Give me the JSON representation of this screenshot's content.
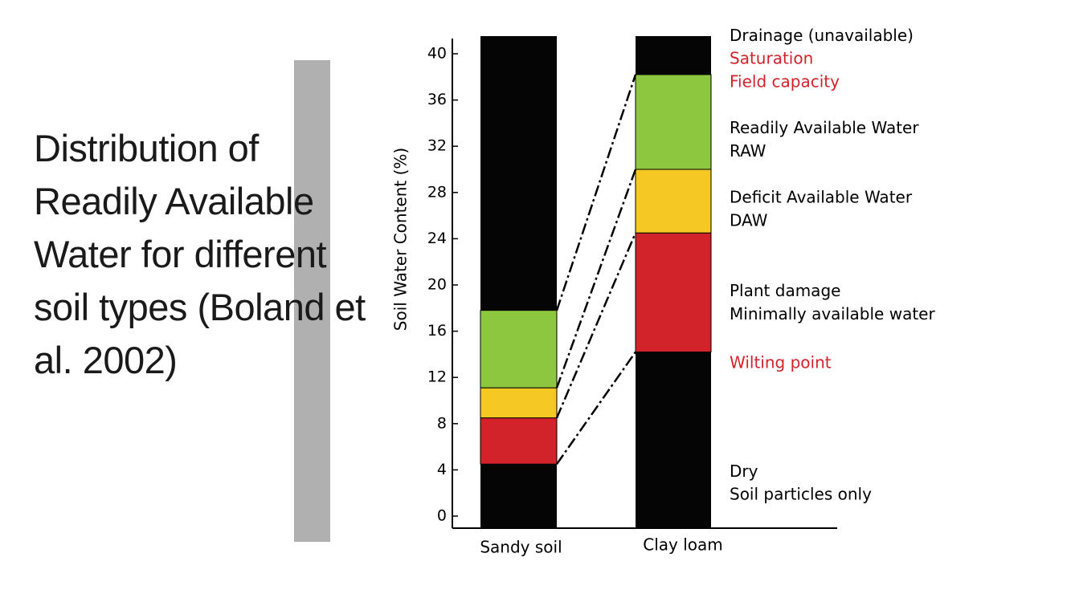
{
  "slide": {
    "title_part1": "Distribution of Readily Available Water for different soil types",
    "title_part2": " (Boland et al. 2002)"
  },
  "colors": {
    "black": "#050505",
    "green": "#8dc63f",
    "yellow": "#f5c823",
    "red": "#d2232a",
    "legend_red": "#d2232a",
    "legend_black": "#000000"
  },
  "chart_data": {
    "type": "bar",
    "stacked": true,
    "ylabel": "Soil Water Content (%)",
    "ylim": [
      0,
      42
    ],
    "yticks": [
      0,
      4,
      8,
      12,
      16,
      20,
      24,
      28,
      32,
      36,
      40
    ],
    "grid": false,
    "categories": [
      "Sandy soil",
      "Clay loam"
    ],
    "bars": [
      {
        "category": "Sandy soil",
        "segments": [
          {
            "from": 0,
            "to": 4.5,
            "color": "black",
            "zone": "Dry / Soil particles only"
          },
          {
            "from": 4.5,
            "to": 8.5,
            "color": "red",
            "zone": "Plant damage / Minimally available water"
          },
          {
            "from": 8.5,
            "to": 11.1,
            "color": "yellow",
            "zone": "Deficit Available Water"
          },
          {
            "from": 11.1,
            "to": 17.8,
            "color": "green",
            "zone": "Readily Available Water"
          },
          {
            "from": 17.8,
            "to": 42,
            "color": "black",
            "zone": "Drainage (unavailable)"
          }
        ]
      },
      {
        "category": "Clay loam",
        "segments": [
          {
            "from": 0,
            "to": 14.2,
            "color": "black",
            "zone": "Dry / Soil particles only"
          },
          {
            "from": 14.2,
            "to": 24.5,
            "color": "red",
            "zone": "Plant damage / Minimally available water"
          },
          {
            "from": 24.5,
            "to": 30,
            "color": "yellow",
            "zone": "Deficit Available Water"
          },
          {
            "from": 30,
            "to": 38.2,
            "color": "green",
            "zone": "Readily Available Water"
          },
          {
            "from": 38.2,
            "to": 42,
            "color": "black",
            "zone": "Drainage (unavailable)"
          }
        ]
      }
    ],
    "connectors": [
      {
        "from": 4.5,
        "to": 14.2
      },
      {
        "from": 8.5,
        "to": 24.5
      },
      {
        "from": 11.1,
        "to": 30
      },
      {
        "from": 17.8,
        "to": 38.2
      }
    ],
    "legend": [
      {
        "text": "Drainage (unavailable)",
        "color": "legend_black",
        "y": 41.5
      },
      {
        "text": "Saturation",
        "color": "legend_red",
        "y": 39.5
      },
      {
        "text": "Field capacity",
        "color": "legend_red",
        "y": 37.5
      },
      {
        "text": "Readily Available Water",
        "color": "legend_black",
        "y": 33.5
      },
      {
        "text": "RAW",
        "color": "legend_black",
        "y": 31.5
      },
      {
        "text": "Deficit Available Water",
        "color": "legend_black",
        "y": 27.5
      },
      {
        "text": "DAW",
        "color": "legend_black",
        "y": 25.5
      },
      {
        "text": "Plant damage",
        "color": "legend_black",
        "y": 19.4
      },
      {
        "text": "Minimally available water",
        "color": "legend_black",
        "y": 17.4
      },
      {
        "text": "Wilting point",
        "color": "legend_red",
        "y": 13.2
      },
      {
        "text": "Dry",
        "color": "legend_black",
        "y": 3.8
      },
      {
        "text": "Soil particles only",
        "color": "legend_black",
        "y": 1.8
      }
    ]
  }
}
